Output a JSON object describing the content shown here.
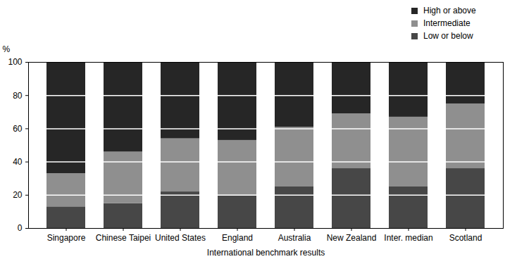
{
  "chart_data": {
    "type": "bar",
    "stacked": true,
    "x_label": "International benchmark results",
    "y_label": "%",
    "categories": [
      "Singapore",
      "Chinese Taipei",
      "United States",
      "England",
      "Australia",
      "New Zealand",
      "Inter. median",
      "Scotland"
    ],
    "series": [
      {
        "name": "Low or below",
        "color": "#474747",
        "values": [
          13,
          15,
          22,
          20,
          25,
          36,
          25,
          36
        ]
      },
      {
        "name": "Intermediate",
        "color": "#8f8f8f",
        "values": [
          20,
          31,
          32,
          33,
          36,
          33,
          42,
          39
        ]
      },
      {
        "name": "High or above",
        "color": "#262626",
        "values": [
          67,
          54,
          46,
          47,
          39,
          31,
          33,
          25
        ]
      }
    ],
    "ylim": [
      0,
      100
    ],
    "yticks": [
      0,
      20,
      40,
      60,
      80,
      100
    ],
    "grid": true,
    "legend": "top-right"
  }
}
